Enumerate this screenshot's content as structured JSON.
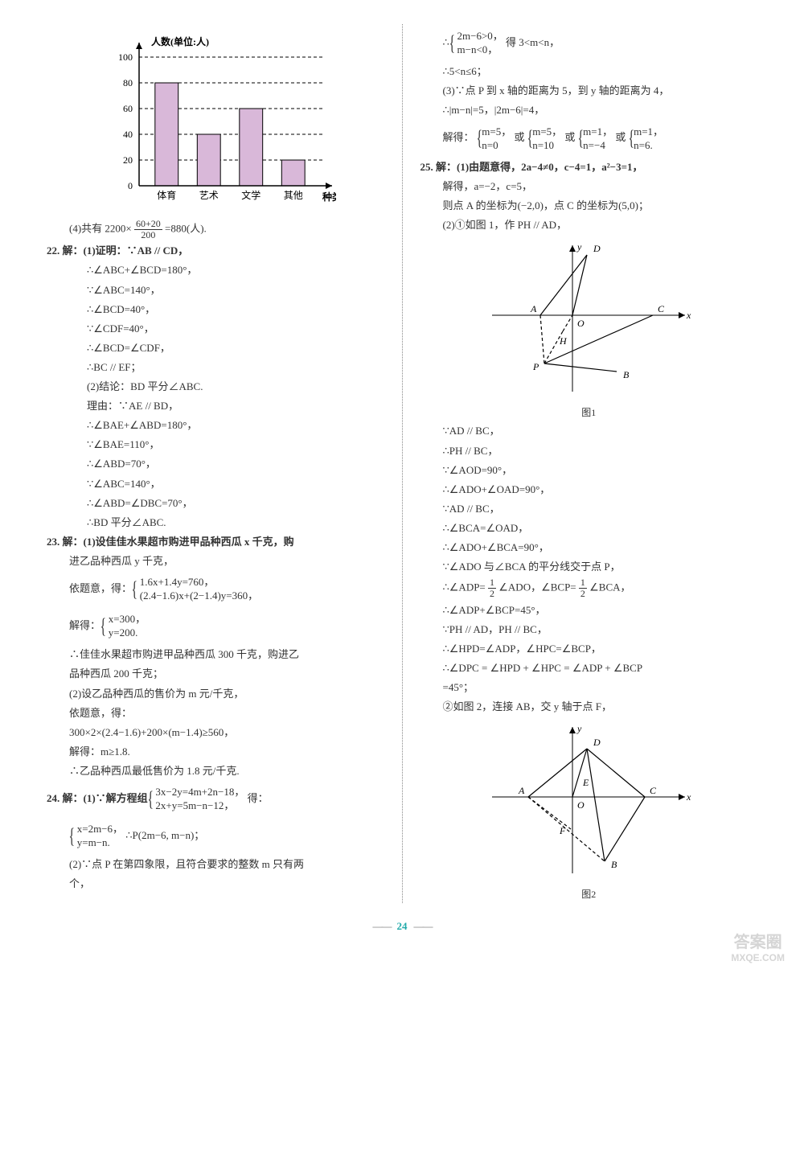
{
  "barchart": {
    "type": "bar",
    "y_axis_label": "人数(单位:人)",
    "x_axis_label": "种类",
    "categories": [
      "体育",
      "艺术",
      "文学",
      "其他"
    ],
    "values": [
      80,
      40,
      60,
      20
    ],
    "y_ticks": [
      0,
      20,
      40,
      60,
      80,
      100
    ],
    "ylim": [
      0,
      100
    ],
    "bar_fill": "#d9b8d9",
    "bar_stroke": "#000000",
    "axis_color": "#000000",
    "dash_color": "#000000",
    "background_color": "#ffffff",
    "label_fontsize": 12,
    "bar_width": 0.55
  },
  "left": {
    "s4": "(4)共有 2200×",
    "s4_num": "60+20",
    "s4_den": "200",
    "s4_tail": "=880(人).",
    "q22": "22. 解：(1)证明：∵AB // CD，",
    "q22_l": [
      "∴∠ABC+∠BCD=180°，",
      "∵∠ABC=140°，",
      "∴∠BCD=40°，",
      "∵∠CDF=40°，",
      "∴∠BCD=∠CDF，",
      "∴BC // EF；",
      "(2)结论：BD 平分∠ABC.",
      "理由：∵AE // BD，",
      "∴∠BAE+∠ABD=180°，",
      "∵∠BAE=110°，",
      "∴∠ABD=70°，",
      "∵∠ABC=140°，",
      "∴∠ABD=∠DBC=70°，",
      "∴BD 平分∠ABC."
    ],
    "q23": "23. 解：(1)设佳佳水果超市购进甲品种西瓜 x 千克，购",
    "q23_a": "进乙品种西瓜 y 千克，",
    "q23_b_pre": "依题意，得：",
    "q23_b_r1": "1.6x+1.4y=760，",
    "q23_b_r2": "(2.4−1.6)x+(2−1.4)y=360，",
    "q23_c_pre": "解得：",
    "q23_c_r1": "x=300，",
    "q23_c_r2": "y=200.",
    "q23_d": "∴佳佳水果超市购进甲品种西瓜 300 千克，购进乙",
    "q23_e": "品种西瓜 200 千克；",
    "q23_f": "(2)设乙品种西瓜的售价为 m 元/千克，",
    "q23_g": "依题意，得：",
    "q23_h": "300×2×(2.4−1.6)+200×(m−1.4)≥560，",
    "q23_i": "解得：m≥1.8.",
    "q23_j": "∴乙品种西瓜最低售价为 1.8 元/千克.",
    "q24": "24. 解：(1)∵解方程组",
    "q24_r1": "3x−2y=4m+2n−18，",
    "q24_r2": "2x+y=5m−n−12，",
    "q24_tail": "得：",
    "q24_b_r1": "x=2m−6，",
    "q24_b_r2": "y=m−n.",
    "q24_b_tail": "∴P(2m−6, m−n)；",
    "q24_c": "(2)∵点 P 在第四象限，且符合要求的整数 m 只有两",
    "q24_d": "个，"
  },
  "right": {
    "r1_pre": "∴",
    "r1_r1": "2m−6>0，",
    "r1_r2": "m−n<0，",
    "r1_tail": "得 3<m<n，",
    "r2": "∴5<n≤6；",
    "r3": "(3)∵点 P 到 x 轴的距离为 5，到 y 轴的距离为 4，",
    "r4": "∴|m−n|=5，|2m−6|=4，",
    "r5_pre": "解得：",
    "r5_a1": "m=5，",
    "r5_a2": "n=0",
    "r5_b1": "m=5，",
    "r5_b2": "n=10",
    "r5_c1": "m=1，",
    "r5_c2": "n=−4",
    "r5_d1": "m=1，",
    "r5_d2": "n=6.",
    "r5_or": "或",
    "q25": "25. 解：(1)由题意得，2a−4≠0，c−4=1，a²−3=1，",
    "q25_a": "解得，a=−2，c=5，",
    "q25_b": "则点 A 的坐标为(−2,0)，点 C 的坐标为(5,0)；",
    "q25_c": "(2)①如图 1，作 PH // AD，",
    "fig1": {
      "type": "diagram",
      "caption": "图1",
      "axis_color": "#000000",
      "line_color": "#000000",
      "dash_color": "#000000",
      "label_fontsize": 12,
      "labels": {
        "A": "A",
        "O": "O",
        "C": "C",
        "D": "D",
        "P": "P",
        "B": "B",
        "H": "H",
        "x": "x",
        "y": "y"
      },
      "points": {
        "A": [
          -40,
          0
        ],
        "O": [
          0,
          0
        ],
        "C": [
          100,
          0
        ],
        "D": [
          18,
          -75
        ],
        "P": [
          -35,
          60
        ],
        "B": [
          55,
          70
        ],
        "H": [
          -12,
          20
        ]
      }
    },
    "proof": [
      "∵AD // BC，",
      "∴PH // BC，",
      "∵∠AOD=90°，",
      "∴∠ADO+∠OAD=90°，",
      "∵AD // BC，",
      "∴∠BCA=∠OAD，",
      "∴∠ADO+∠BCA=90°，",
      "∵∠ADO 与∠BCA 的平分线交于点 P，"
    ],
    "proof_frac": "∴∠ADP=",
    "half_num": "1",
    "half_den": "2",
    "proof_frac_mid": "∠ADO，∠BCP=",
    "proof_frac_tail": "∠BCA，",
    "proof2": [
      "∴∠ADP+∠BCP=45°，",
      "∵PH // AD，PH // BC，",
      "∴∠HPD=∠ADP，∠HPC=∠BCP，",
      "∴∠DPC = ∠HPD + ∠HPC = ∠ADP + ∠BCP",
      "=45°；",
      "②如图 2，连接 AB，交 y 轴于点 F，"
    ],
    "fig2": {
      "type": "diagram",
      "caption": "图2",
      "axis_color": "#000000",
      "line_color": "#000000",
      "dash_color": "#000000",
      "label_fontsize": 12,
      "labels": {
        "A": "A",
        "O": "O",
        "C": "C",
        "D": "D",
        "E": "E",
        "F": "F",
        "B": "B",
        "x": "x",
        "y": "y"
      },
      "points": {
        "A": [
          -55,
          0
        ],
        "O": [
          0,
          0
        ],
        "C": [
          90,
          0
        ],
        "D": [
          18,
          -60
        ],
        "E": [
          5,
          -12
        ],
        "F": [
          -2,
          40
        ],
        "B": [
          40,
          80
        ]
      }
    }
  },
  "page_number": "24",
  "watermark": {
    "line1": "答案圈",
    "line2": "MXQE.COM"
  }
}
